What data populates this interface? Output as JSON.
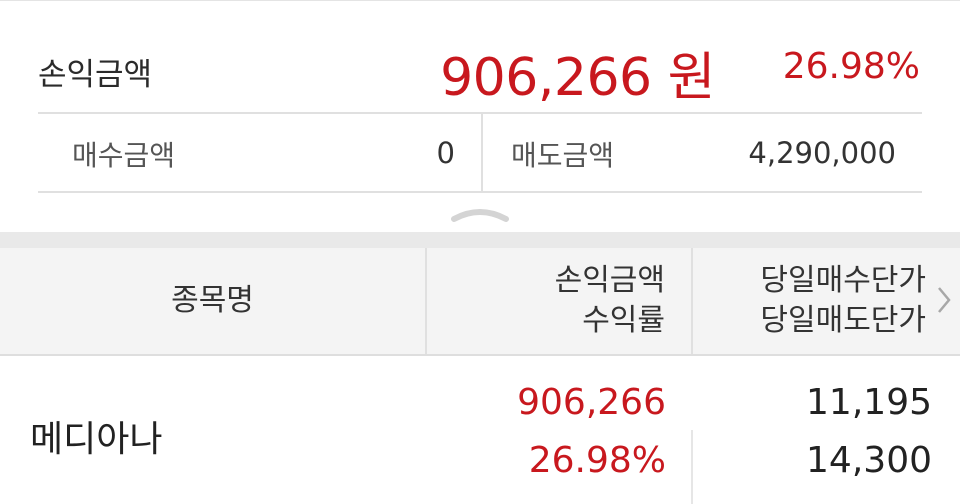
{
  "summary": {
    "profit_label": "손익금액",
    "profit_amount": "906,266 원",
    "profit_rate": "26.98%",
    "buy_label": "매수금액",
    "buy_value": "0",
    "sell_label": "매도금액",
    "sell_value": "4,290,000"
  },
  "table": {
    "headers": {
      "name": "종목명",
      "profit": "손익금액",
      "rate": "수익률",
      "buy_price": "당일매수단가",
      "sell_price": "당일매도단가"
    },
    "rows": [
      {
        "name": "메디아나",
        "profit": "906,266",
        "rate": "26.98%",
        "buy_price": "11,195",
        "sell_price": "14,300"
      }
    ]
  },
  "icons": {
    "collapse": "chevron-up-icon",
    "scroll_right": "chevron-right-icon"
  },
  "colors": {
    "profit_red": "#c8181e",
    "header_bg": "#f4f4f4",
    "gap_bg": "#e9e9e9"
  }
}
